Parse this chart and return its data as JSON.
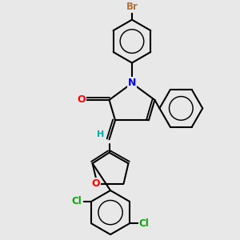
{
  "bg_color": "#e8e8e8",
  "bond_color": "#000000",
  "bond_width": 1.5,
  "atom_colors": {
    "Br": "#b87333",
    "N": "#0000ff",
    "O": "#ff0000",
    "Cl": "#00aa00",
    "H": "#00aaaa"
  },
  "figsize": [
    3.0,
    3.0
  ],
  "dpi": 100
}
